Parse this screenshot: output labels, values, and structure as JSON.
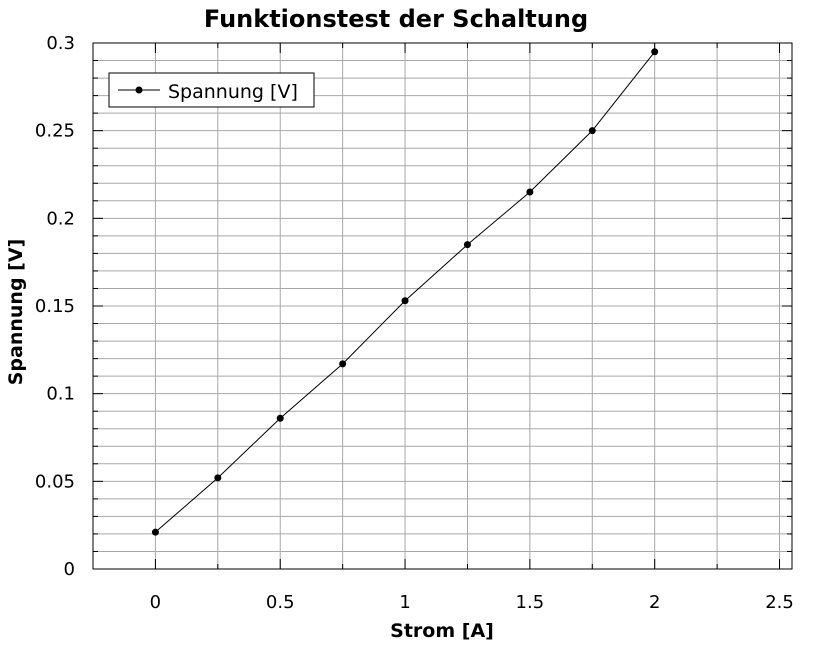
{
  "chart_data": {
    "type": "line",
    "title": "Funktionstest der Schaltung",
    "xlabel": "Strom [A]",
    "ylabel": "Spannung [V]",
    "xlim": [
      -0.25,
      2.55
    ],
    "ylim": [
      0,
      0.3
    ],
    "x_ticks": [
      0,
      0.5,
      1,
      1.5,
      2,
      2.5
    ],
    "y_ticks": [
      0,
      0.05,
      0.1,
      0.15,
      0.2,
      0.25,
      0.3
    ],
    "x_tick_labels": [
      "0",
      "0.5",
      "1",
      "1.5",
      "2",
      "2.5"
    ],
    "y_tick_labels": [
      "0",
      "0.05",
      "0.1",
      "0.15",
      "0.2",
      "0.25",
      "0.3"
    ],
    "x_grid_step": 0.25,
    "y_grid_step": 0.01,
    "y_major_grid_step": 0.05,
    "grid": true,
    "legend_position": "top-left",
    "series": [
      {
        "name": "Spannung [V]",
        "color": "#000000",
        "marker": "circle",
        "x": [
          0,
          0.25,
          0.5,
          0.75,
          1,
          1.25,
          1.5,
          1.75,
          2
        ],
        "y": [
          0.021,
          0.052,
          0.086,
          0.117,
          0.153,
          0.185,
          0.215,
          0.25,
          0.295
        ]
      }
    ]
  }
}
